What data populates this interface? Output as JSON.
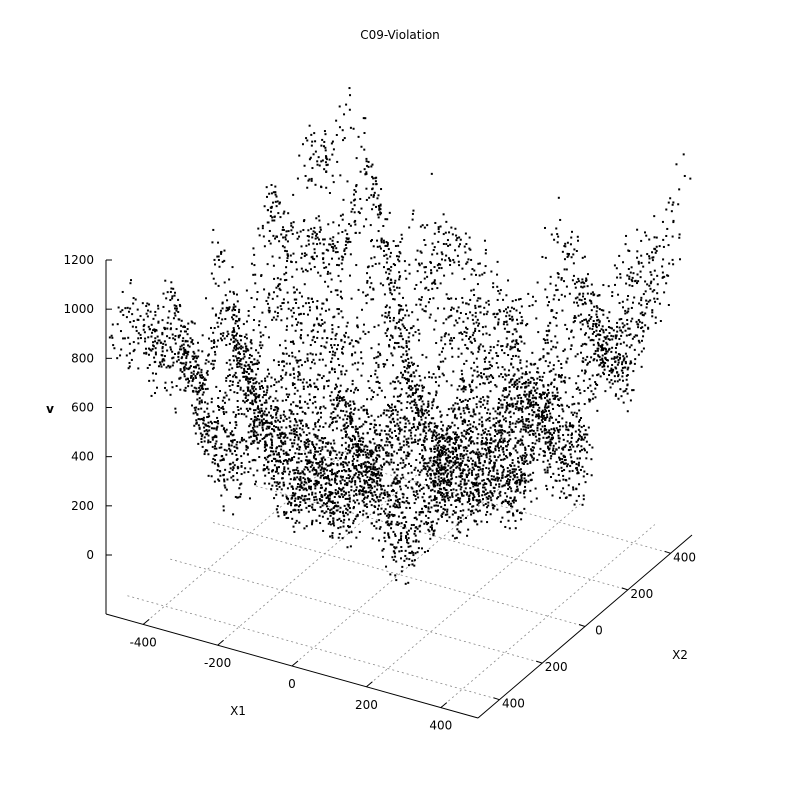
{
  "chart_data": {
    "type": "scatter",
    "title": "C09-Violation",
    "xlabel": "X1",
    "ylabel": "X2",
    "zlabel": "v",
    "xlim": [
      -500,
      500
    ],
    "ylim": [
      -500,
      500
    ],
    "zlim": [
      -240,
      1200
    ],
    "x_ticks": [
      "-400",
      "-200",
      "0",
      "200",
      "400"
    ],
    "y_ticks": [
      "-400",
      "-200",
      "0",
      "200",
      "400"
    ],
    "y_tick_display": [
      "400",
      "200",
      "0",
      "200",
      "400"
    ],
    "z_ticks": [
      "0",
      "200",
      "400",
      "600",
      "800",
      "1000",
      "1200"
    ],
    "grid": true,
    "point_color": "#000000",
    "surface_description_note": "dense scatter cloud of a rippled violation surface over the X1-X2 domain",
    "sample_points": [
      {
        "x": -500,
        "y": -500,
        "v": 470
      },
      {
        "x": -450,
        "y": -480,
        "v": 850
      },
      {
        "x": -300,
        "y": -420,
        "v": 790
      },
      {
        "x": -200,
        "y": -350,
        "v": 1260
      },
      {
        "x": -120,
        "y": -300,
        "v": 1600
      },
      {
        "x": -50,
        "y": -250,
        "v": 1280
      },
      {
        "x": 20,
        "y": -200,
        "v": 1300
      },
      {
        "x": 100,
        "y": -150,
        "v": 1100
      },
      {
        "x": 180,
        "y": -80,
        "v": 1050
      },
      {
        "x": 250,
        "y": 0,
        "v": 1080
      },
      {
        "x": 320,
        "y": 80,
        "v": 1200
      },
      {
        "x": 400,
        "y": 200,
        "v": 1120
      },
      {
        "x": 480,
        "y": 400,
        "v": 1300
      },
      {
        "x": 0,
        "y": 0,
        "v": 150
      },
      {
        "x": 150,
        "y": 150,
        "v": 80
      },
      {
        "x": 300,
        "y": 300,
        "v": 350
      },
      {
        "x": -300,
        "y": 200,
        "v": 120
      }
    ]
  }
}
